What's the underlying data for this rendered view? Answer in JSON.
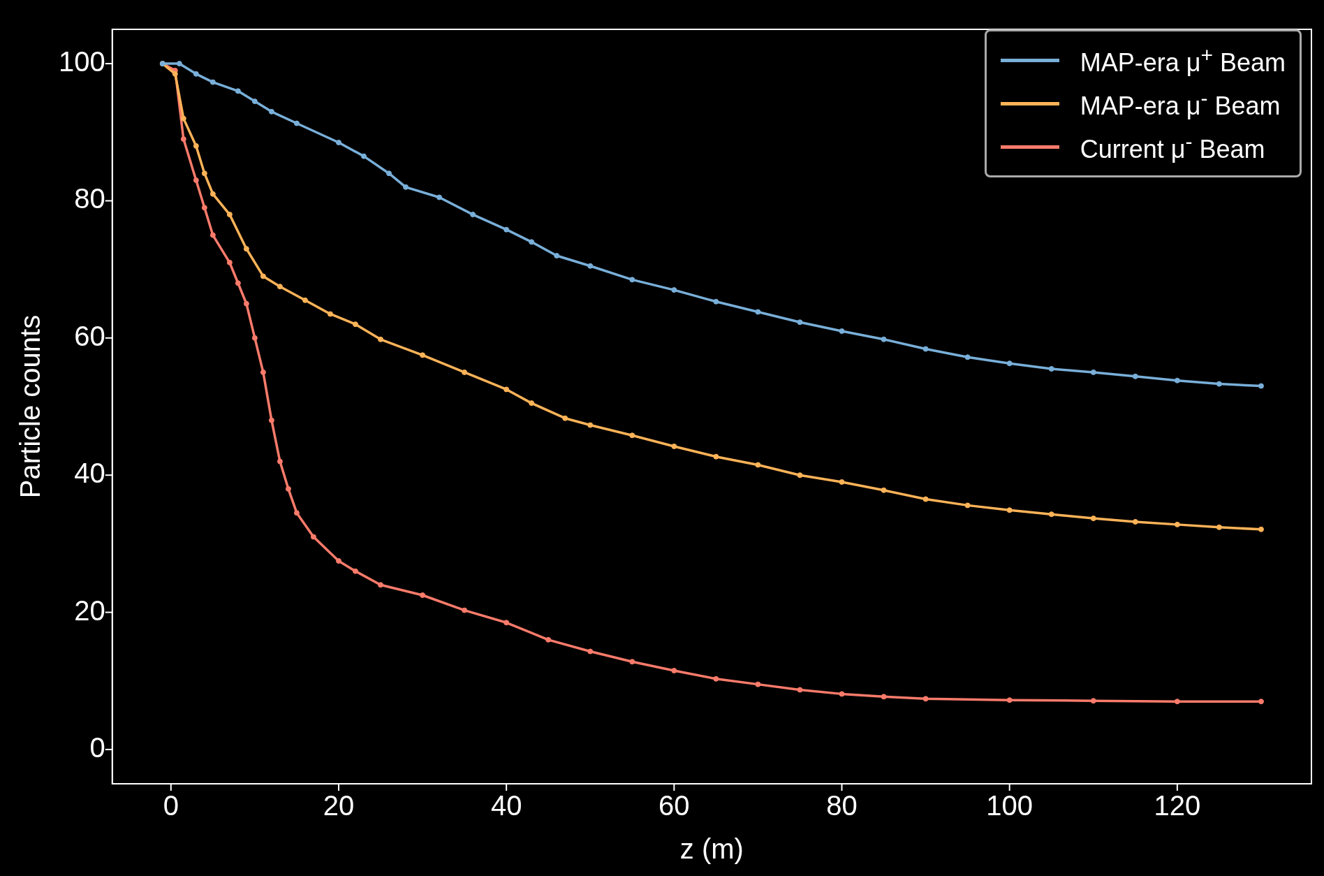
{
  "chart_data": {
    "type": "line",
    "xlabel": "z (m)",
    "ylabel": "Particle counts",
    "xlim": [
      -7,
      136
    ],
    "ylim": [
      -5,
      105
    ],
    "xticks": [
      0,
      20,
      40,
      60,
      80,
      100,
      120
    ],
    "yticks": [
      0,
      20,
      40,
      60,
      80,
      100
    ],
    "grid": false,
    "legend": "top right",
    "marker": "circle",
    "line_style": "solid",
    "series": [
      {
        "name": "MAP-era μ$^{+}$ Beam",
        "color": "#79afd9",
        "x": [
          -1,
          1,
          3,
          5,
          8,
          10,
          12,
          15,
          20,
          23,
          26,
          28,
          32,
          36,
          40,
          43,
          46,
          50,
          55,
          60,
          65,
          70,
          75,
          80,
          85,
          90,
          95,
          100,
          105,
          110,
          115,
          120,
          125,
          130
        ],
        "values": [
          100,
          100,
          98.5,
          97.3,
          96,
          94.5,
          93,
          91.3,
          88.5,
          86.5,
          84,
          82,
          80.5,
          78,
          75.8,
          74,
          72,
          70.5,
          68.5,
          67,
          65.3,
          63.8,
          62.3,
          61,
          59.8,
          58.4,
          57.2,
          56.3,
          55.5,
          55,
          54.4,
          53.8,
          53.3,
          53
        ]
      },
      {
        "name": "MAP-era μ$^{-}$ Beam",
        "color": "#fdb358",
        "x": [
          -1,
          0.5,
          1.5,
          3,
          4,
          5,
          7,
          9,
          11,
          13,
          16,
          19,
          22,
          25,
          30,
          35,
          40,
          43,
          47,
          50,
          55,
          60,
          65,
          70,
          75,
          80,
          85,
          90,
          95,
          100,
          105,
          110,
          115,
          120,
          125,
          130
        ],
        "values": [
          100,
          98.5,
          92,
          88,
          84,
          81,
          78,
          73,
          69,
          67.5,
          65.5,
          63.5,
          62,
          59.8,
          57.5,
          55,
          52.5,
          50.5,
          48.3,
          47.3,
          45.8,
          44.2,
          42.7,
          41.5,
          40,
          39,
          37.8,
          36.5,
          35.6,
          34.9,
          34.3,
          33.7,
          33.2,
          32.8,
          32.4,
          32.1
        ]
      },
      {
        "name": "Current μ$^{-}$ Beam",
        "color": "#fa7b6b",
        "x": [
          -1,
          0.5,
          1.5,
          3,
          4,
          5,
          7,
          8,
          9,
          10,
          11,
          12,
          13,
          14,
          15,
          17,
          20,
          22,
          25,
          30,
          35,
          40,
          45,
          50,
          55,
          60,
          65,
          70,
          75,
          80,
          85,
          90,
          100,
          110,
          120,
          130
        ],
        "values": [
          100,
          99,
          89,
          83,
          79,
          75,
          71,
          68,
          65,
          60,
          55,
          48,
          42,
          38,
          34.5,
          31,
          27.5,
          26,
          24,
          22.5,
          20.3,
          18.5,
          16,
          14.3,
          12.8,
          11.5,
          10.3,
          9.5,
          8.7,
          8.1,
          7.7,
          7.4,
          7.2,
          7.1,
          7,
          7
        ]
      }
    ]
  }
}
